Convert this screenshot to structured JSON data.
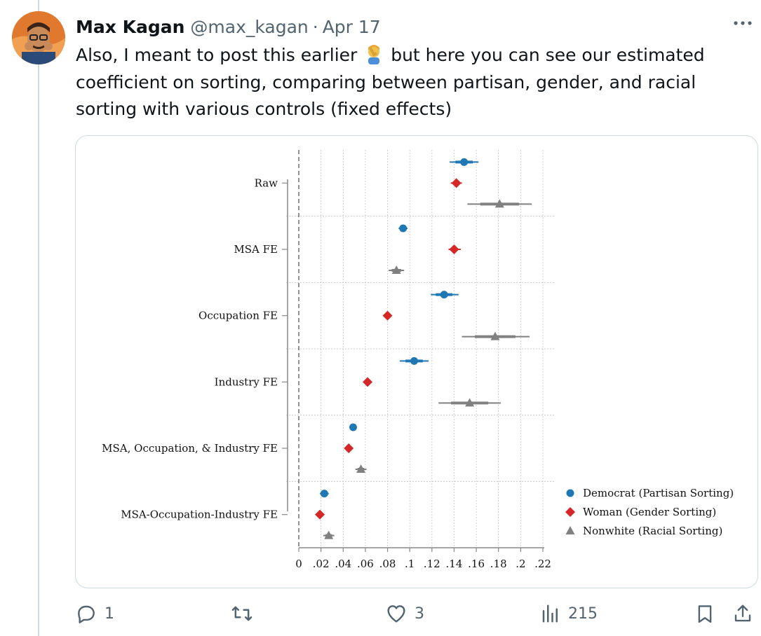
{
  "tweet": {
    "author_name": "Max Kagan",
    "handle": "@max_kagan",
    "separator": "·",
    "date": "Apr 17",
    "text_before_emoji": "Also, I meant to post this earlier ",
    "text_after_emoji": " but here you can see our estimated coefficient on sorting, comparing between partisan, gender, and racial sorting with various controls (fixed effects)",
    "emoji": "person-facepalming",
    "more_icon": "more-horizontal-icon"
  },
  "actions": {
    "reply_count": "1",
    "retweet_count": "",
    "like_count": "3",
    "views_count": "215"
  },
  "chart_data": {
    "type": "scatter",
    "subtype": "coefficient-plot (horizontal, with confidence intervals)",
    "categories": [
      "Raw",
      "MSA FE",
      "Occupation FE",
      "Industry FE",
      "MSA, Occupation, & Industry FE",
      "MSA-Occupation-Industry FE"
    ],
    "xlim": [
      0,
      0.22
    ],
    "xticks": [
      0,
      0.02,
      0.04,
      0.06,
      0.08,
      0.1,
      0.12,
      0.14,
      0.16,
      0.18,
      0.2,
      0.22
    ],
    "xtick_labels": [
      "0",
      ".02",
      ".04",
      ".06",
      ".08",
      ".1",
      ".12",
      ".14",
      ".16",
      ".18",
      ".2",
      ".22"
    ],
    "grid": true,
    "legend_position": "bottom-right",
    "series": [
      {
        "name": "Democrat (Partisan Sorting)",
        "marker": "circle",
        "color": "#1f77b4",
        "values": [
          0.149,
          0.094,
          0.131,
          0.104,
          0.049,
          0.023
        ],
        "ci_low": [
          0.136,
          0.09,
          0.119,
          0.091,
          0.047,
          0.019
        ],
        "ci_high": [
          0.162,
          0.098,
          0.144,
          0.117,
          0.051,
          0.027
        ]
      },
      {
        "name": "Woman (Gender Sorting)",
        "marker": "diamond",
        "color": "#d62728",
        "values": [
          0.142,
          0.14,
          0.08,
          0.062,
          0.045,
          0.019
        ],
        "ci_low": [
          0.137,
          0.135,
          0.078,
          0.06,
          0.043,
          0.017
        ],
        "ci_high": [
          0.147,
          0.146,
          0.082,
          0.064,
          0.047,
          0.021
        ]
      },
      {
        "name": "Nonwhite (Racial Sorting)",
        "marker": "triangle",
        "color": "#808080",
        "values": [
          0.181,
          0.088,
          0.177,
          0.154,
          0.056,
          0.027
        ],
        "ci_low": [
          0.152,
          0.081,
          0.147,
          0.126,
          0.051,
          0.022
        ],
        "ci_high": [
          0.21,
          0.095,
          0.208,
          0.182,
          0.061,
          0.032
        ]
      }
    ]
  }
}
